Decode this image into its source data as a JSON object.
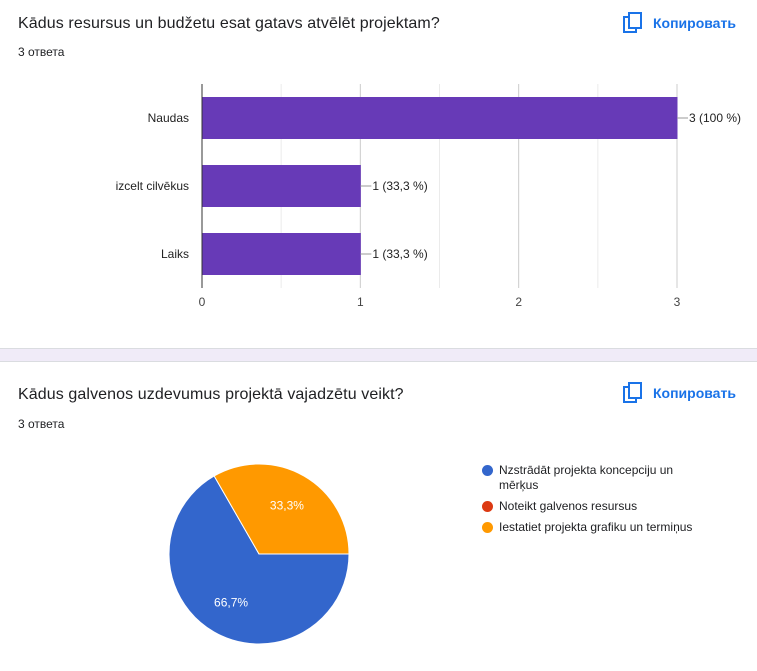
{
  "questions": [
    {
      "title": "Kādus resursus un budžetu esat gatavs atvēlēt projektam?",
      "count": "3 ответа",
      "copy_label": "Копировать"
    },
    {
      "title": "Kādus galvenos uzdevumus projektā vajadzētu veikt?",
      "count": "3 ответа",
      "copy_label": "Копировать"
    }
  ],
  "chart_data": [
    {
      "type": "bar",
      "orientation": "horizontal",
      "categories": [
        "Naudas",
        "izcelt cilvēkus",
        "Laiks"
      ],
      "values": [
        3,
        1,
        1
      ],
      "data_labels": [
        "3 (100 %)",
        "1 (33,3 %)",
        "1 (33,3 %)"
      ],
      "xlim": [
        0,
        3
      ],
      "x_ticks": [
        "0",
        "1",
        "2",
        "3"
      ],
      "grid": true,
      "color": "#673ab7"
    },
    {
      "type": "pie",
      "labels": [
        "Nzstrādāt projekta koncepciju un mērķus",
        "Noteikt galvenos resursus",
        "Iestatiet projekta grafiku un termiņus"
      ],
      "values": [
        66.7,
        0,
        33.3
      ],
      "slice_labels": [
        "66,7%",
        "",
        "33,3%"
      ],
      "colors": [
        "#3366cc",
        "#dc3912",
        "#ff9900"
      ],
      "legend": "right"
    }
  ]
}
